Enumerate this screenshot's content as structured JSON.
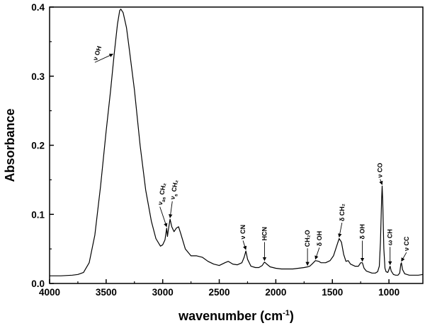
{
  "chart_data": {
    "type": "line",
    "title": "",
    "xlabel": "wavenumber (cm",
    "xlabel_sup": "-1",
    "xlabel_suffix": ")",
    "ylabel": "Absorbance",
    "xlim": [
      4000,
      700
    ],
    "ylim": [
      0.0,
      0.4
    ],
    "x_reversed": true,
    "grid": false,
    "legend": "none",
    "x_ticks": [
      {
        "value": 4000,
        "label": "4000"
      },
      {
        "value": 3500,
        "label": "3500"
      },
      {
        "value": 3000,
        "label": "3000"
      },
      {
        "value": 2500,
        "label": "2500"
      },
      {
        "value": 2000,
        "label": "2000"
      },
      {
        "value": 1500,
        "label": "1500"
      },
      {
        "value": 1000,
        "label": "1000"
      }
    ],
    "y_ticks": [
      {
        "value": 0.0,
        "label": "0.0"
      },
      {
        "value": 0.1,
        "label": "0.1"
      },
      {
        "value": 0.2,
        "label": "0.2"
      },
      {
        "value": 0.3,
        "label": "0.3"
      },
      {
        "value": 0.4,
        "label": "0.4"
      }
    ],
    "series": [
      {
        "color": "#000000",
        "points": [
          [
            4000,
            0.011
          ],
          [
            3900,
            0.011
          ],
          [
            3800,
            0.012
          ],
          [
            3750,
            0.013
          ],
          [
            3700,
            0.016
          ],
          [
            3650,
            0.03
          ],
          [
            3600,
            0.07
          ],
          [
            3550,
            0.14
          ],
          [
            3500,
            0.22
          ],
          [
            3460,
            0.28
          ],
          [
            3430,
            0.33
          ],
          [
            3400,
            0.375
          ],
          [
            3380,
            0.395
          ],
          [
            3370,
            0.397
          ],
          [
            3350,
            0.392
          ],
          [
            3320,
            0.37
          ],
          [
            3300,
            0.345
          ],
          [
            3250,
            0.28
          ],
          [
            3200,
            0.2
          ],
          [
            3150,
            0.135
          ],
          [
            3100,
            0.09
          ],
          [
            3060,
            0.065
          ],
          [
            3020,
            0.054
          ],
          [
            3000,
            0.056
          ],
          [
            2980,
            0.063
          ],
          [
            2965,
            0.08
          ],
          [
            2958,
            0.068
          ],
          [
            2950,
            0.078
          ],
          [
            2935,
            0.093
          ],
          [
            2920,
            0.082
          ],
          [
            2900,
            0.075
          ],
          [
            2880,
            0.08
          ],
          [
            2860,
            0.082
          ],
          [
            2840,
            0.072
          ],
          [
            2800,
            0.05
          ],
          [
            2750,
            0.04
          ],
          [
            2700,
            0.04
          ],
          [
            2650,
            0.038
          ],
          [
            2600,
            0.032
          ],
          [
            2550,
            0.028
          ],
          [
            2500,
            0.026
          ],
          [
            2450,
            0.03
          ],
          [
            2420,
            0.032
          ],
          [
            2380,
            0.028
          ],
          [
            2340,
            0.027
          ],
          [
            2300,
            0.03
          ],
          [
            2280,
            0.038
          ],
          [
            2265,
            0.047
          ],
          [
            2250,
            0.035
          ],
          [
            2220,
            0.025
          ],
          [
            2180,
            0.023
          ],
          [
            2150,
            0.023
          ],
          [
            2120,
            0.026
          ],
          [
            2100,
            0.031
          ],
          [
            2080,
            0.028
          ],
          [
            2050,
            0.024
          ],
          [
            2000,
            0.022
          ],
          [
            1950,
            0.021
          ],
          [
            1900,
            0.021
          ],
          [
            1850,
            0.021
          ],
          [
            1800,
            0.022
          ],
          [
            1750,
            0.023
          ],
          [
            1720,
            0.024
          ],
          [
            1700,
            0.025
          ],
          [
            1680,
            0.028
          ],
          [
            1650,
            0.033
          ],
          [
            1620,
            0.032
          ],
          [
            1600,
            0.03
          ],
          [
            1560,
            0.03
          ],
          [
            1520,
            0.033
          ],
          [
            1490,
            0.04
          ],
          [
            1460,
            0.055
          ],
          [
            1440,
            0.065
          ],
          [
            1420,
            0.06
          ],
          [
            1400,
            0.042
          ],
          [
            1380,
            0.032
          ],
          [
            1360,
            0.033
          ],
          [
            1340,
            0.028
          ],
          [
            1300,
            0.025
          ],
          [
            1270,
            0.025
          ],
          [
            1250,
            0.03
          ],
          [
            1235,
            0.03
          ],
          [
            1220,
            0.022
          ],
          [
            1200,
            0.018
          ],
          [
            1150,
            0.015
          ],
          [
            1120,
            0.015
          ],
          [
            1100,
            0.017
          ],
          [
            1085,
            0.025
          ],
          [
            1075,
            0.06
          ],
          [
            1065,
            0.12
          ],
          [
            1060,
            0.141
          ],
          [
            1055,
            0.12
          ],
          [
            1045,
            0.05
          ],
          [
            1035,
            0.022
          ],
          [
            1025,
            0.017
          ],
          [
            1010,
            0.016
          ],
          [
            1000,
            0.02
          ],
          [
            990,
            0.025
          ],
          [
            980,
            0.018
          ],
          [
            960,
            0.013
          ],
          [
            940,
            0.012
          ],
          [
            920,
            0.012
          ],
          [
            905,
            0.015
          ],
          [
            895,
            0.028
          ],
          [
            890,
            0.03
          ],
          [
            880,
            0.02
          ],
          [
            860,
            0.014
          ],
          [
            820,
            0.012
          ],
          [
            780,
            0.012
          ],
          [
            740,
            0.012
          ],
          [
            700,
            0.013
          ]
        ]
      }
    ],
    "annotations": [
      {
        "id": "vOH",
        "text": "ν OH",
        "sub": "",
        "suffix": "",
        "x": 3440,
        "y": 0.33,
        "tx": 3600,
        "ty": 0.322,
        "angle": -72
      },
      {
        "id": "vasCH2",
        "text": "ν",
        "sub": "as",
        "suffix": " CH₂",
        "x": 2965,
        "y": 0.08,
        "tx": 3025,
        "ty": 0.113,
        "angle": -80
      },
      {
        "id": "vsCH2",
        "text": "ν",
        "sub": "s",
        "suffix": " CH₂",
        "x": 2935,
        "y": 0.093,
        "tx": 2915,
        "ty": 0.121,
        "angle": -80
      },
      {
        "id": "vCN",
        "text": "ν CN",
        "sub": "",
        "suffix": "",
        "x": 2265,
        "y": 0.047,
        "tx": 2290,
        "ty": 0.064,
        "angle": -90
      },
      {
        "id": "HCN",
        "text": "HCN",
        "sub": "",
        "suffix": "",
        "x": 2100,
        "y": 0.031,
        "tx": 2100,
        "ty": 0.062,
        "angle": -90
      },
      {
        "id": "CH2O",
        "text": "CH₂O",
        "sub": "",
        "suffix": "",
        "x": 1720,
        "y": 0.024,
        "tx": 1720,
        "ty": 0.053,
        "angle": -90
      },
      {
        "id": "dOH1",
        "text": "δ OH",
        "sub": "",
        "suffix": "",
        "x": 1650,
        "y": 0.033,
        "tx": 1615,
        "ty": 0.054,
        "angle": -90
      },
      {
        "id": "dCH2",
        "text": "δ CH₂",
        "sub": "",
        "suffix": "",
        "x": 1440,
        "y": 0.065,
        "tx": 1415,
        "ty": 0.09,
        "angle": -90
      },
      {
        "id": "dOH2",
        "text": "δ OH",
        "sub": "",
        "suffix": "",
        "x": 1235,
        "y": 0.03,
        "tx": 1235,
        "ty": 0.064,
        "angle": -90
      },
      {
        "id": "vCO",
        "text": "ν CO",
        "sub": "",
        "suffix": "",
        "x": 1060,
        "y": 0.141,
        "tx": 1078,
        "ty": 0.153,
        "angle": -90
      },
      {
        "id": "wCH",
        "text": "ω CH",
        "sub": "",
        "suffix": "",
        "x": 990,
        "y": 0.025,
        "tx": 990,
        "ty": 0.055,
        "angle": -90
      },
      {
        "id": "vCC",
        "text": "ν CC",
        "sub": "",
        "suffix": "",
        "x": 890,
        "y": 0.03,
        "tx": 845,
        "ty": 0.047,
        "angle": -90
      }
    ]
  }
}
